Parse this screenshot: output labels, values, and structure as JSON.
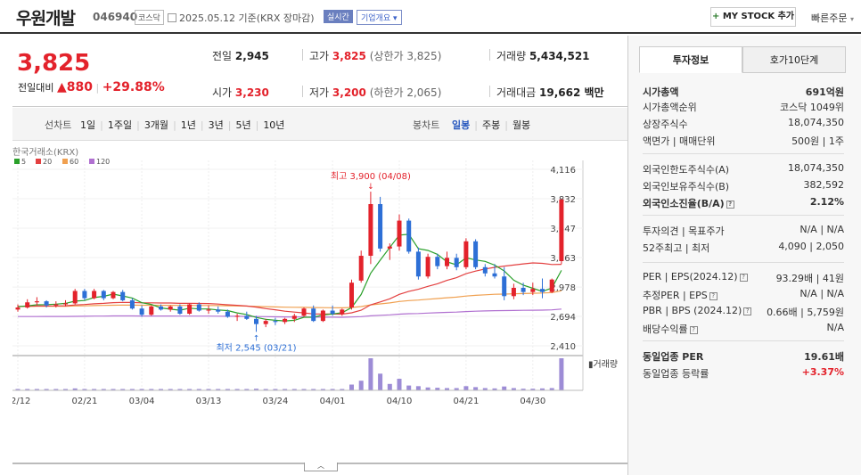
{
  "header": {
    "company": "우원개발",
    "code": "046940",
    "market": "코스닥",
    "date": "2025.05.12 기준(KRX 장마감)",
    "realtime": "실시간",
    "overview": "기업개요",
    "mystock": "MY STOCK 추가",
    "mystock_plus": "+",
    "quick_order": "빠른주문"
  },
  "price": {
    "current": "3,825",
    "change_label": "전일대비",
    "change_arrow": "▲",
    "change": "880",
    "change_pct": "+29.88%",
    "prev_close_label": "전일",
    "prev_close": "2,945",
    "high_label": "고가",
    "high": "3,825",
    "upper_limit": "(상한가 3,825)",
    "volume_label": "거래량",
    "volume": "5,434,521",
    "open_label": "시가",
    "open": "3,230",
    "low_label": "저가",
    "low": "3,200",
    "lower_limit": "(하한가 2,065)",
    "amount_label": "거래대금",
    "amount": "19,662 백만"
  },
  "periods": {
    "line_label": "선차트",
    "line_items": [
      "1일",
      "1주일",
      "3개월",
      "1년",
      "3년",
      "5년",
      "10년"
    ],
    "candle_label": "봉차트",
    "candle_items": [
      "일봉",
      "주봉",
      "월봉"
    ]
  },
  "colors": {
    "up": "#e3222b",
    "down": "#2d6fd6",
    "ma5": "#2aa02a",
    "ma20": "#e34040",
    "ma60": "#f0a050",
    "ma120": "#b070d0",
    "volume": "#9d8cd6"
  },
  "chart_data": {
    "type": "candlestick",
    "source": "한국거래소(KRX)",
    "ma_legend": [
      "5",
      "20",
      "60",
      "120"
    ],
    "y_ticks": [
      4116,
      3832,
      3547,
      3263,
      2978,
      2694,
      2410
    ],
    "y_tick_labels": [
      "4,116",
      "3,832",
      "3,547",
      "3,263",
      "2,978",
      "2,694",
      "2,410"
    ],
    "x_labels": [
      "02/12",
      "02/21",
      "03/04",
      "03/13",
      "03/24",
      "04/01",
      "04/10",
      "04/21",
      "04/30"
    ],
    "x_label_index": [
      0,
      7,
      13,
      20,
      27,
      33,
      40,
      47,
      54
    ],
    "max_annotation": "최고 3,900 (04/08)",
    "max_index": 37,
    "max_value": 3900,
    "min_annotation": "최저 2,545 (03/21)",
    "min_index": 25,
    "min_value": 2545,
    "volume_label": "거래량",
    "candles": [
      [
        2760,
        2810,
        2740,
        2780
      ],
      [
        2780,
        2860,
        2770,
        2830
      ],
      [
        2830,
        2880,
        2800,
        2840
      ],
      [
        2840,
        2850,
        2780,
        2800
      ],
      [
        2800,
        2840,
        2780,
        2810
      ],
      [
        2810,
        2850,
        2790,
        2820
      ],
      [
        2820,
        2960,
        2810,
        2940
      ],
      [
        2940,
        2960,
        2850,
        2870
      ],
      [
        2870,
        2960,
        2860,
        2940
      ],
      [
        2940,
        2950,
        2850,
        2870
      ],
      [
        2870,
        2940,
        2860,
        2930
      ],
      [
        2930,
        2950,
        2840,
        2850
      ],
      [
        2850,
        2870,
        2760,
        2770
      ],
      [
        2770,
        2800,
        2690,
        2710
      ],
      [
        2710,
        2800,
        2700,
        2790
      ],
      [
        2790,
        2810,
        2750,
        2760
      ],
      [
        2760,
        2800,
        2740,
        2790
      ],
      [
        2790,
        2810,
        2710,
        2720
      ],
      [
        2720,
        2820,
        2710,
        2810
      ],
      [
        2810,
        2830,
        2740,
        2750
      ],
      [
        2750,
        2800,
        2720,
        2760
      ],
      [
        2760,
        2790,
        2720,
        2740
      ],
      [
        2740,
        2760,
        2680,
        2690
      ],
      [
        2690,
        2720,
        2650,
        2700
      ],
      [
        2700,
        2740,
        2660,
        2670
      ],
      [
        2670,
        2700,
        2545,
        2620
      ],
      [
        2620,
        2670,
        2590,
        2650
      ],
      [
        2650,
        2680,
        2610,
        2640
      ],
      [
        2640,
        2680,
        2620,
        2670
      ],
      [
        2670,
        2720,
        2640,
        2700
      ],
      [
        2700,
        2780,
        2690,
        2770
      ],
      [
        2770,
        2800,
        2640,
        2650
      ],
      [
        2650,
        2760,
        2640,
        2750
      ],
      [
        2750,
        2800,
        2700,
        2720
      ],
      [
        2720,
        2770,
        2700,
        2760
      ],
      [
        2780,
        3050,
        2760,
        3020
      ],
      [
        3040,
        3330,
        3020,
        3280
      ],
      [
        3280,
        3900,
        3200,
        3780
      ],
      [
        3780,
        3850,
        3320,
        3350
      ],
      [
        3350,
        3400,
        3240,
        3370
      ],
      [
        3370,
        3680,
        3330,
        3620
      ],
      [
        3620,
        3640,
        3300,
        3320
      ],
      [
        3320,
        3360,
        3050,
        3080
      ],
      [
        3080,
        3300,
        3060,
        3270
      ],
      [
        3270,
        3300,
        3150,
        3180
      ],
      [
        3180,
        3320,
        3150,
        3260
      ],
      [
        3260,
        3300,
        3140,
        3170
      ],
      [
        3170,
        3450,
        3150,
        3420
      ],
      [
        3420,
        3440,
        3150,
        3170
      ],
      [
        3170,
        3200,
        3080,
        3110
      ],
      [
        3110,
        3200,
        3060,
        3080
      ],
      [
        3080,
        3170,
        2850,
        2890
      ],
      [
        2890,
        3010,
        2860,
        2970
      ],
      [
        2970,
        3020,
        2900,
        2930
      ],
      [
        2930,
        3020,
        2900,
        2960
      ],
      [
        2960,
        3060,
        2870,
        2930
      ],
      [
        2930,
        3060,
        2920,
        3050
      ],
      [
        3230,
        3825,
        3200,
        3825
      ]
    ],
    "volumes": [
      0.03,
      0.02,
      0.02,
      0.02,
      0.03,
      0.02,
      0.06,
      0.03,
      0.04,
      0.03,
      0.03,
      0.03,
      0.04,
      0.04,
      0.03,
      0.02,
      0.02,
      0.03,
      0.03,
      0.03,
      0.02,
      0.02,
      0.02,
      0.03,
      0.02,
      0.05,
      0.03,
      0.02,
      0.02,
      0.02,
      0.03,
      0.04,
      0.03,
      0.03,
      0.04,
      0.18,
      0.3,
      1.0,
      0.52,
      0.2,
      0.36,
      0.15,
      0.13,
      0.09,
      0.08,
      0.07,
      0.07,
      0.13,
      0.1,
      0.07,
      0.06,
      0.12,
      0.07,
      0.05,
      0.05,
      0.06,
      0.07,
      1.0
    ]
  },
  "panel": {
    "tab_active": "투자정보",
    "tab_inactive": "호가10단계",
    "rows": [
      {
        "l": "시가총액",
        "r": "691억원",
        "lb": true,
        "rb": true
      },
      {
        "l": "시가총액순위",
        "r": "코스닥 1049위"
      },
      {
        "l": "상장주식수",
        "r": "18,074,350"
      },
      {
        "l": "액면가 | 매매단위",
        "r": "500원 | 1주"
      },
      {
        "l": "외국인한도주식수(A)",
        "r": "18,074,350"
      },
      {
        "l": "외국인보유주식수(B)",
        "r": "382,592"
      },
      {
        "l": "외국인소진율(B/A)",
        "r": "2.12%",
        "lb": true,
        "rb": true,
        "q": true
      },
      {
        "l": "투자의견 | 목표주가",
        "r": "N/A | N/A"
      },
      {
        "l": "52주최고 | 최저",
        "r": "4,090 | 2,050"
      },
      {
        "l": "PER | EPS(2024.12)",
        "r": "93.29배 | 41원",
        "q": true
      },
      {
        "l": "추정PER | EPS",
        "r": "N/A | N/A",
        "q": true
      },
      {
        "l": "PBR | BPS (2024.12)",
        "r": "0.66배 | 5,759원",
        "q": true
      },
      {
        "l": "배당수익률",
        "r": "N/A",
        "q": true
      },
      {
        "l": "동일업종 PER",
        "r": "19.61배",
        "lb": true,
        "rb": true
      },
      {
        "l": "동일업종 등락률",
        "r": "+3.37%",
        "rred": true
      }
    ]
  }
}
